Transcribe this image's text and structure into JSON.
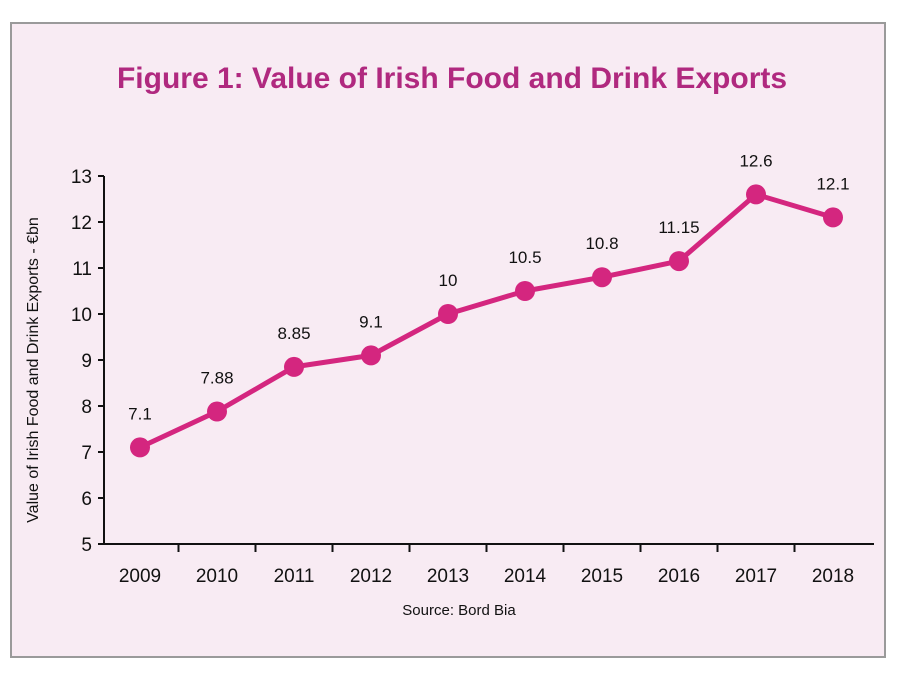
{
  "chart_data": {
    "type": "line",
    "title": "Figure 1: Value of Irish Food and Drink Exports",
    "ylabel": "Value of Irish Food and Drink Exports - €bn",
    "xlabel": "",
    "source": "Source: Bord Bia",
    "categories": [
      "2009",
      "2010",
      "2011",
      "2012",
      "2013",
      "2014",
      "2015",
      "2016",
      "2017",
      "2018"
    ],
    "series": [
      {
        "values": [
          7.1,
          7.88,
          8.85,
          9.1,
          10,
          10.5,
          10.8,
          11.15,
          12.6,
          12.1
        ]
      }
    ],
    "data_labels": [
      "7.1",
      "7.88",
      "8.85",
      "9.1",
      "10",
      "10.5",
      "10.8",
      "11.15",
      "12.6",
      "12.1"
    ],
    "ylim": [
      5,
      13
    ],
    "yticks": [
      5,
      6,
      7,
      8,
      9,
      10,
      11,
      12,
      13
    ],
    "grid": false,
    "color": "#d4267f"
  }
}
